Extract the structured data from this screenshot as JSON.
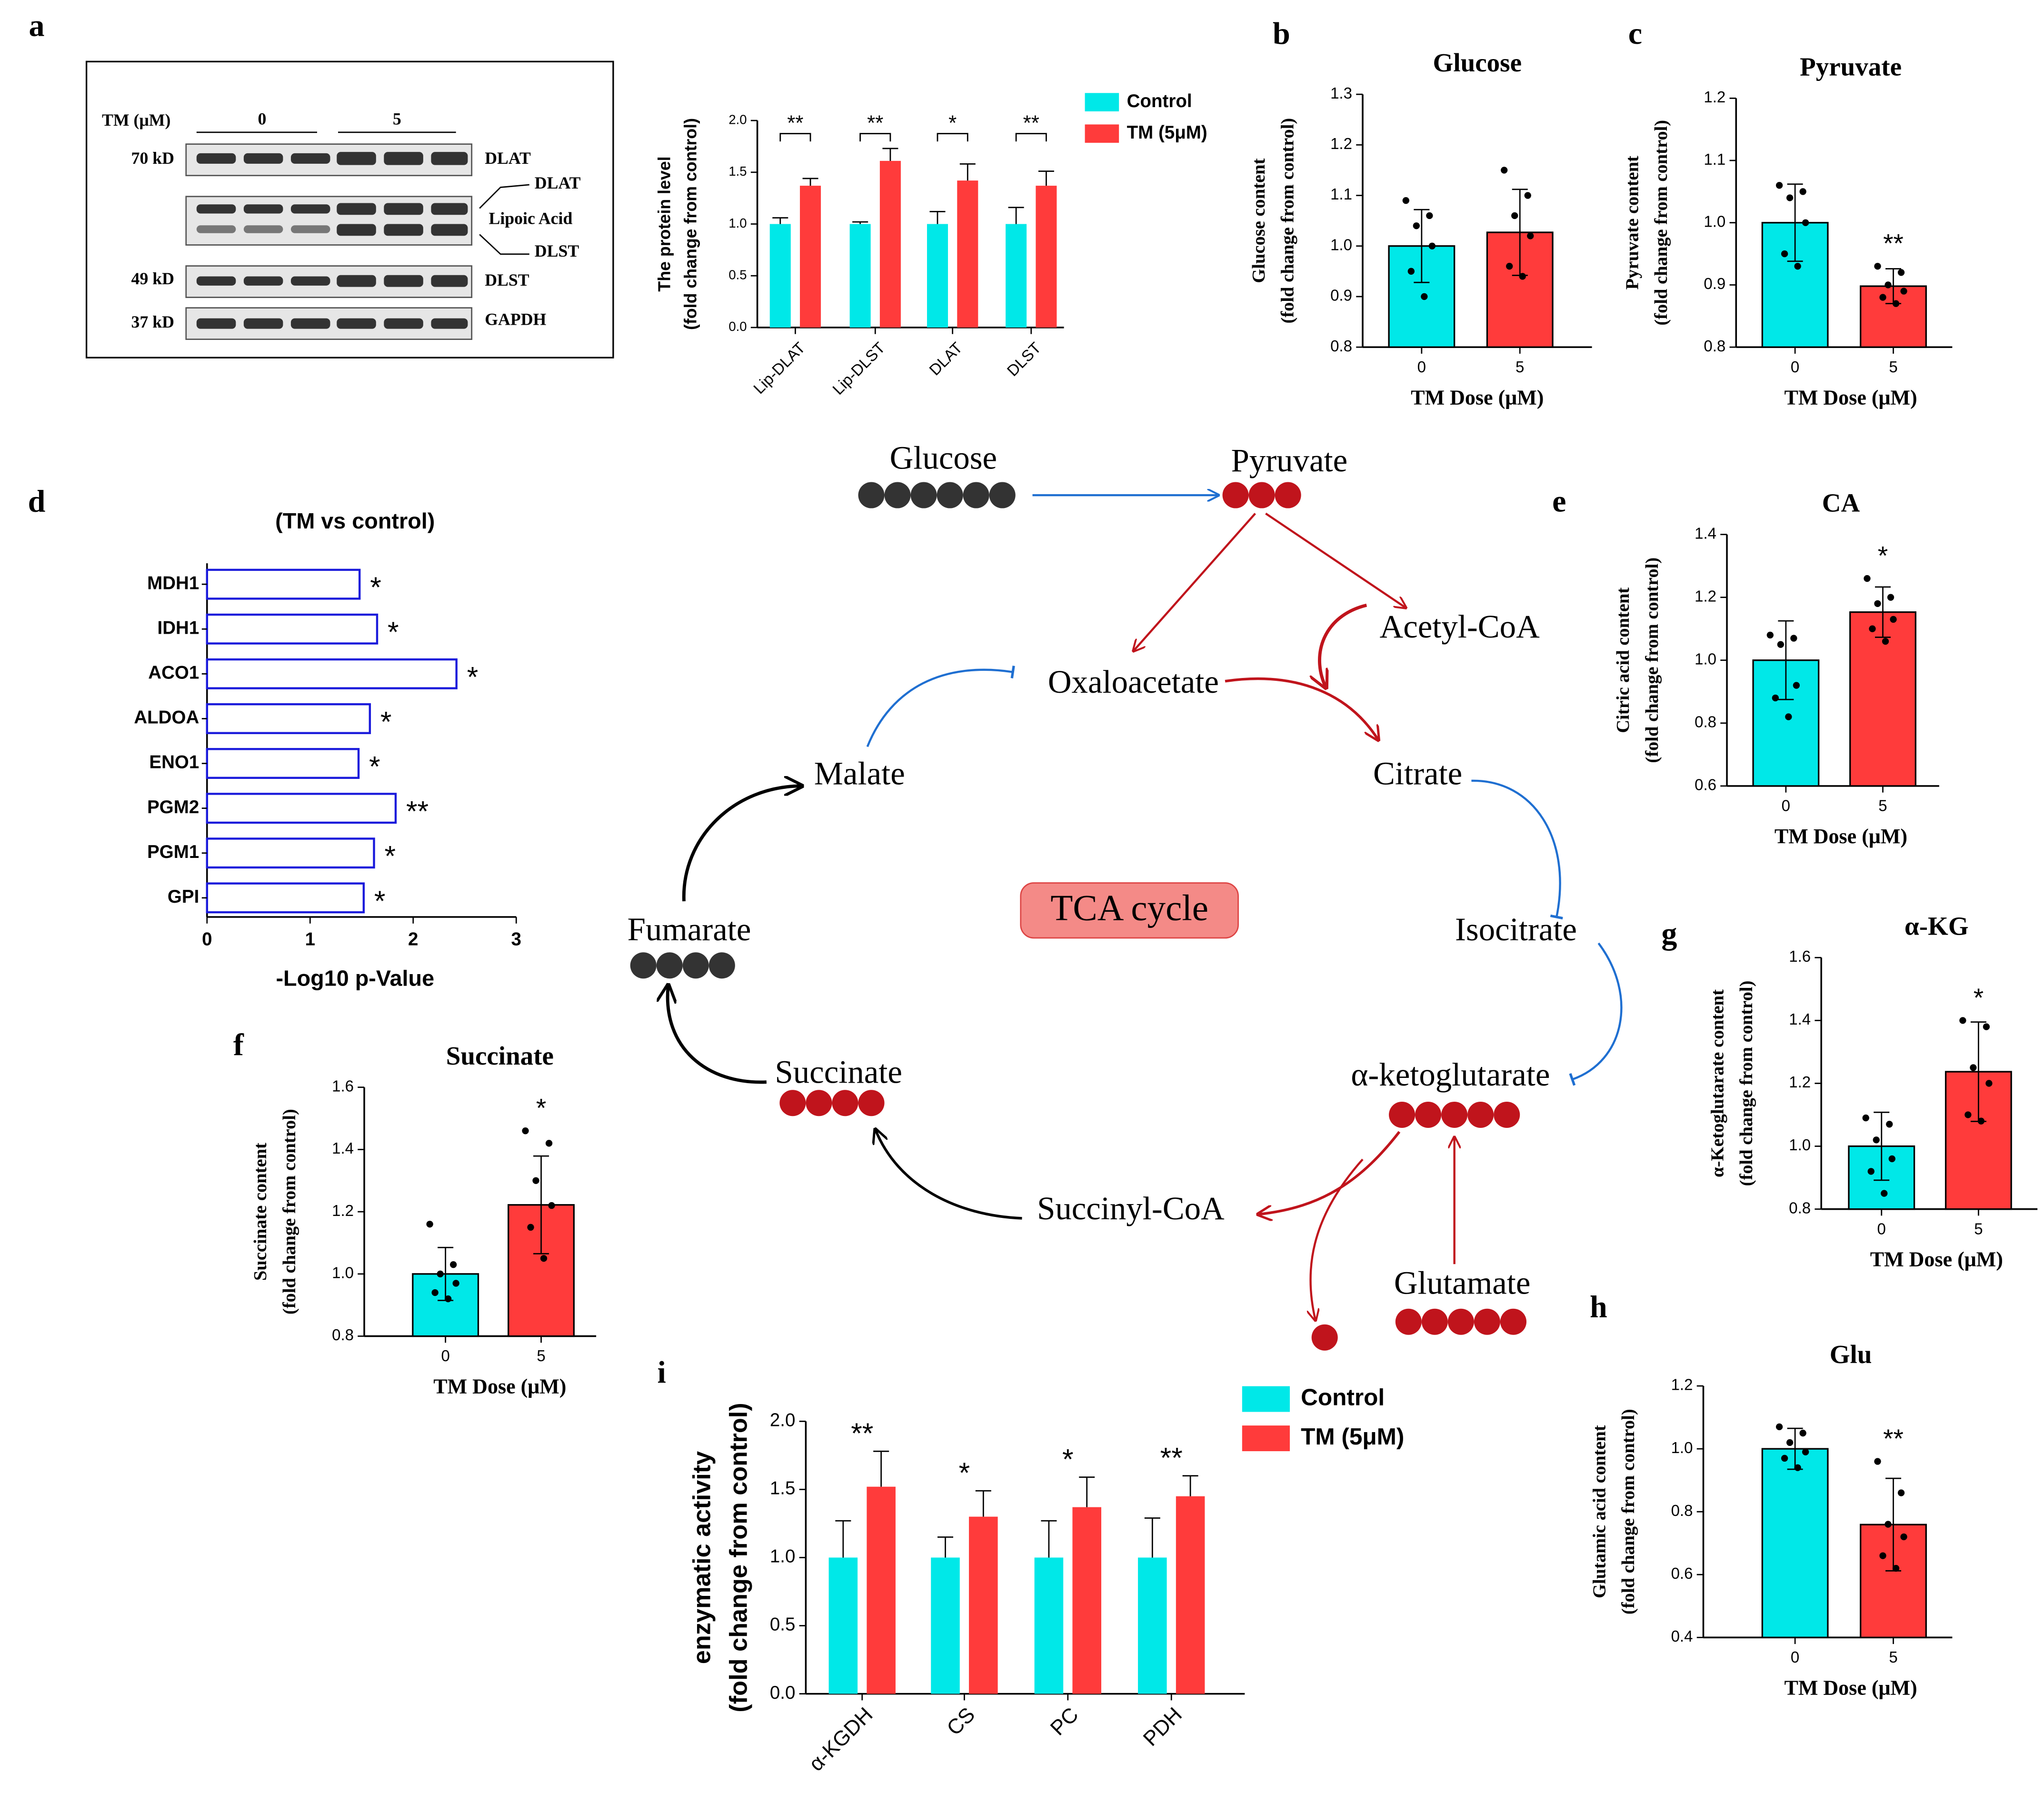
{
  "panels": [
    "a",
    "b",
    "c",
    "d",
    "e",
    "f",
    "g",
    "h",
    "i"
  ],
  "blot": {
    "treatment_label": "TM (μM)",
    "groups": [
      "0",
      "5"
    ],
    "markers": [
      "70 kD",
      "49 kD",
      "37 kD"
    ],
    "rows": [
      "DLAT",
      "DLAT",
      "Lipoic Acid",
      "DLST",
      "DLST",
      "GAPDH"
    ]
  },
  "diagram": {
    "center": "TCA cycle",
    "nodes": [
      {
        "label": "Glucose",
        "color": "#444444"
      },
      {
        "label": "Pyruvate",
        "color": "#c0141c"
      },
      {
        "label": "Acetyl-CoA",
        "color": "#444444"
      },
      {
        "label": "Oxaloacetate",
        "color": "#444444"
      },
      {
        "label": "Citrate",
        "color": "#c0141c"
      },
      {
        "label": "Isocitrate",
        "color": "#444444"
      },
      {
        "label": "α-ketoglutarate",
        "color": "#c0141c"
      },
      {
        "label": "Succinyl-CoA",
        "color": "#444444"
      },
      {
        "label": "Succinate",
        "color": "#c0141c"
      },
      {
        "label": "Fumarate",
        "color": "#444444"
      },
      {
        "label": "Malate",
        "color": "#444444"
      },
      {
        "label": "Glutamate",
        "color": "#c0141c"
      }
    ]
  },
  "chart_data": [
    {
      "type": "grouped_bar",
      "ylabel": [
        "The protein level",
        "(fold change from control)"
      ],
      "categories": [
        "Lip-DLAT",
        "Lip-DLST",
        "DLAT",
        "DLST"
      ],
      "series": [
        {
          "name": "Control",
          "color": "#00e8e8",
          "values": [
            1,
            1,
            1,
            1
          ],
          "errors": [
            0.06,
            0.02,
            0.12,
            0.16
          ]
        },
        {
          "name": "TM (5μM)",
          "color": "#ff3b3b",
          "values": [
            1.37,
            1.61,
            1.42,
            1.37
          ],
          "errors": [
            0.07,
            0.12,
            0.16,
            0.14
          ]
        }
      ],
      "annotations": [
        "**",
        "**",
        "*",
        "**"
      ],
      "ylim": [
        0,
        2
      ],
      "yticks": [
        {
          "value": 0,
          "label": "0.0"
        },
        0.5,
        {
          "value": 1,
          "label": "1.0"
        },
        1.5,
        {
          "value": 2,
          "label": "2.0"
        }
      ]
    },
    {
      "type": "bar",
      "title": "Glucose",
      "ylabel": [
        "Glucose content",
        "(fold change from control)"
      ],
      "xlabel": "TM Dose (μM)",
      "categories": [
        "0",
        "5"
      ],
      "values": [
        1.0,
        1.027
      ],
      "errors": [
        0.072,
        0.085
      ],
      "colors": [
        "#00e8e8",
        "#ff3b3b"
      ],
      "points": [
        [
          1.09,
          1.06,
          1.04,
          1.0,
          0.95,
          0.9
        ],
        [
          1.15,
          1.1,
          1.06,
          1.02,
          0.96,
          0.94
        ]
      ],
      "ylim": [
        0.8,
        1.3
      ],
      "yticks": [
        0.8,
        0.9,
        {
          "value": 1,
          "label": "1.0"
        },
        1.1,
        1.2,
        1.3
      ]
    },
    {
      "type": "bar",
      "title": "Pyruvate",
      "ylabel": [
        "Pyruvate content",
        "(fold change from control)"
      ],
      "xlabel": "TM Dose (μM)",
      "categories": [
        "0",
        "5"
      ],
      "values": [
        1.0,
        0.898
      ],
      "errors": [
        0.062,
        0.028
      ],
      "colors": [
        "#00e8e8",
        "#ff3b3b"
      ],
      "annotation": "**",
      "points": [
        [
          1.06,
          1.05,
          1.04,
          1.0,
          0.95,
          0.93
        ],
        [
          0.93,
          0.92,
          0.9,
          0.89,
          0.88,
          0.87
        ]
      ],
      "ylim": [
        0.8,
        1.2
      ],
      "yticks": [
        0.8,
        0.9,
        {
          "value": 1,
          "label": "1.0"
        },
        1.1,
        1.2
      ]
    },
    {
      "type": "barh",
      "title": "(TM vs control)",
      "xlabel": "-Log10 p-Value",
      "categories": [
        "MDH1",
        "IDH1",
        "ACO1",
        "ALDOA",
        "ENO1",
        "PGM2",
        "PGM1",
        "GPI"
      ],
      "values": [
        1.48,
        1.65,
        2.42,
        1.58,
        1.47,
        1.83,
        1.62,
        1.52
      ],
      "color": "#1a1adb",
      "annotations": [
        "*",
        "*",
        "*",
        "*",
        "*",
        "**",
        "*",
        "*"
      ],
      "xlim": [
        0,
        3
      ],
      "xticks": [
        0,
        1,
        2,
        3
      ]
    },
    {
      "type": "bar",
      "title": "CA",
      "ylabel": [
        "Citric acid content",
        "(fold change from control)"
      ],
      "xlabel": "TM Dose (μM)",
      "categories": [
        "0",
        "5"
      ],
      "values": [
        1.0,
        1.153
      ],
      "errors": [
        0.125,
        0.08
      ],
      "colors": [
        "#00e8e8",
        "#ff3b3b"
      ],
      "annotation": "*",
      "points": [
        [
          1.08,
          1.07,
          1.05,
          0.92,
          0.88,
          0.82
        ],
        [
          1.26,
          1.2,
          1.18,
          1.13,
          1.1,
          1.06
        ]
      ],
      "ylim": [
        0.6,
        1.4
      ],
      "yticks": [
        0.6,
        0.8,
        {
          "value": 1,
          "label": "1.0"
        },
        1.2,
        1.4
      ]
    },
    {
      "type": "bar",
      "title": "Succinate",
      "ylabel": [
        "Succinate  content",
        "(fold change from control)"
      ],
      "xlabel": "TM Dose (μM)",
      "categories": [
        "0",
        "5"
      ],
      "values": [
        1.0,
        1.222
      ],
      "errors": [
        0.085,
        0.157
      ],
      "colors": [
        "#00e8e8",
        "#ff3b3b"
      ],
      "annotation": "*",
      "points": [
        [
          1.16,
          1.03,
          1.0,
          0.97,
          0.94,
          0.92
        ],
        [
          1.46,
          1.42,
          1.3,
          1.22,
          1.15,
          1.05
        ]
      ],
      "ylim": [
        0.8,
        1.6
      ],
      "yticks": [
        0.8,
        {
          "value": 1,
          "label": "1.0"
        },
        1.2,
        1.4,
        1.6
      ]
    },
    {
      "type": "bar",
      "title": "α-KG",
      "ylabel": [
        "α-Ketoglutarate  content",
        "(fold change from control)"
      ],
      "xlabel": "TM Dose (μM)",
      "categories": [
        "0",
        "5"
      ],
      "values": [
        1.0,
        1.237
      ],
      "errors": [
        0.108,
        0.158
      ],
      "colors": [
        "#00e8e8",
        "#ff3b3b"
      ],
      "annotation": "*",
      "points": [
        [
          1.09,
          1.07,
          1.02,
          0.96,
          0.92,
          0.85
        ],
        [
          1.4,
          1.38,
          1.25,
          1.2,
          1.1,
          1.08
        ]
      ],
      "ylim": [
        0.8,
        1.6
      ],
      "yticks": [
        0.8,
        {
          "value": 1,
          "label": "1.0"
        },
        1.2,
        1.4,
        1.6
      ]
    },
    {
      "type": "bar",
      "title": "Glu",
      "ylabel": [
        "Glutamic acid content",
        "(fold change from control)"
      ],
      "xlabel": "TM Dose (μM)",
      "categories": [
        "0",
        "5"
      ],
      "values": [
        1.0,
        0.759
      ],
      "errors": [
        0.065,
        0.147
      ],
      "colors": [
        "#00e8e8",
        "#ff3b3b"
      ],
      "annotation": "**",
      "points": [
        [
          1.07,
          1.05,
          1.02,
          0.99,
          0.97,
          0.94
        ],
        [
          0.96,
          0.86,
          0.76,
          0.72,
          0.66,
          0.62
        ]
      ],
      "ylim": [
        0.4,
        1.2
      ],
      "yticks": [
        0.4,
        0.6,
        0.8,
        {
          "value": 1,
          "label": "1.0"
        },
        1.2
      ]
    },
    {
      "type": "grouped_bar",
      "ylabel": [
        "enzymatic activity",
        "(fold change from control)"
      ],
      "categories": [
        "α-KGDH",
        "CS",
        "PC",
        "PDH"
      ],
      "series": [
        {
          "name": "Control",
          "color": "#00e8e8",
          "values": [
            1,
            1,
            1,
            1
          ],
          "errors": [
            0.27,
            0.15,
            0.27,
            0.29
          ]
        },
        {
          "name": "TM (5μM)",
          "color": "#ff3b3b",
          "values": [
            1.52,
            1.3,
            1.37,
            1.45
          ],
          "errors": [
            0.26,
            0.19,
            0.22,
            0.15
          ]
        }
      ],
      "annotations": [
        "**",
        "*",
        "*",
        "**"
      ],
      "ylim": [
        0,
        2
      ],
      "yticks": [
        {
          "value": 0,
          "label": "0.0"
        },
        0.5,
        {
          "value": 1,
          "label": "1.0"
        },
        1.5,
        {
          "value": 2,
          "label": "2.0"
        }
      ]
    }
  ]
}
